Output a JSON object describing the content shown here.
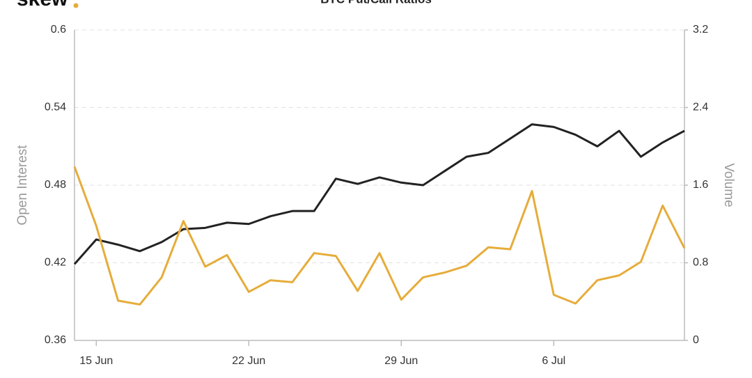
{
  "chart_data": {
    "type": "line",
    "title": "BTC Put/Call Ratios",
    "logo": "skew",
    "y_label": "Open Interest",
    "y2_label": "Volume",
    "categories": [
      null,
      "15 Jun",
      null,
      null,
      null,
      null,
      null,
      null,
      "22 Jun",
      null,
      null,
      null,
      null,
      null,
      null,
      "29 Jun",
      null,
      null,
      null,
      null,
      null,
      null,
      "6 Jul",
      null,
      null,
      null,
      null,
      null,
      null
    ],
    "series": [
      {
        "color": "#222222",
        "axis": "y",
        "values": [
          0.419,
          0.438,
          0.434,
          0.429,
          0.436,
          0.446,
          0.447,
          0.451,
          0.45,
          0.456,
          0.46,
          0.46,
          0.485,
          0.481,
          0.486,
          0.482,
          0.48,
          0.491,
          0.502,
          0.505,
          0.516,
          0.527,
          0.525,
          0.519,
          0.51,
          0.522,
          0.502,
          0.513,
          0.522
        ]
      },
      {
        "color": "#e6ac3a",
        "axis": "y2",
        "values": [
          1.79,
          1.18,
          0.41,
          0.37,
          0.65,
          1.23,
          0.76,
          0.88,
          0.5,
          0.62,
          0.6,
          0.9,
          0.87,
          0.51,
          0.9,
          0.42,
          0.65,
          0.7,
          0.77,
          0.96,
          0.94,
          1.54,
          0.47,
          0.38,
          0.62,
          0.67,
          0.81,
          1.39,
          0.95
        ]
      }
    ],
    "ylim": [
      0.36,
      0.6
    ],
    "yticks": [
      0.36,
      0.42,
      0.48,
      0.54,
      0.6
    ],
    "y2lim": [
      0,
      3.2
    ],
    "y2ticks": [
      0,
      0.8,
      1.6,
      2.4,
      3.2
    ],
    "grid": true
  }
}
